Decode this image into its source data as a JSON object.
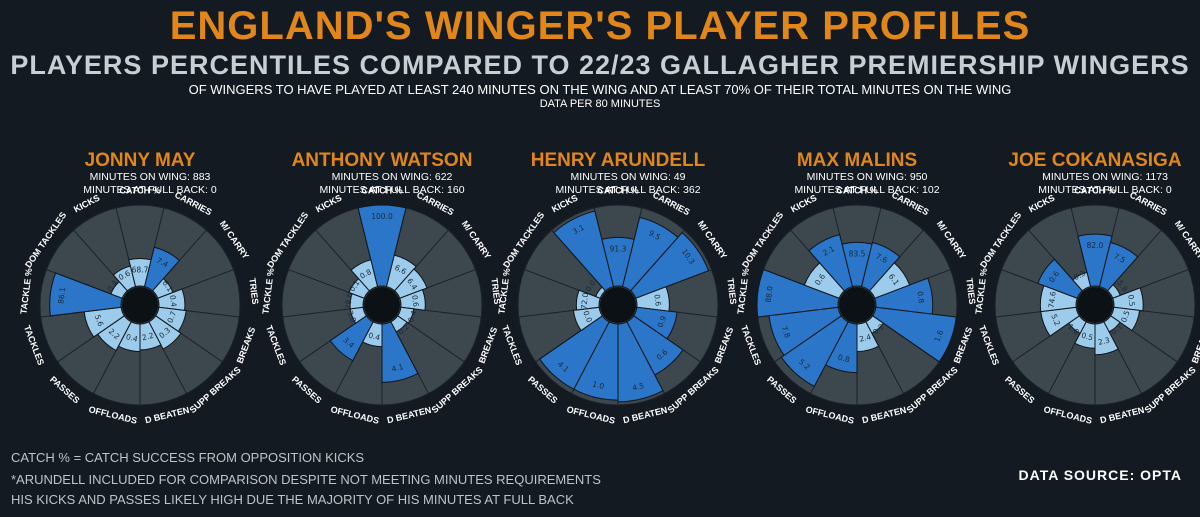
{
  "header": {
    "title": "ENGLAND'S WINGER'S PLAYER PROFILES",
    "subtitle": "PLAYERS PERCENTILES COMPARED TO 22/23 GALLAGHER PREMIERSHIP WINGERS",
    "description": "OF WINGERS TO HAVE PLAYED AT LEAST 240 MINUTES ON THE WING AND AT LEAST 70% OF THEIR TOTAL MINUTES ON THE WING",
    "description2": "DATA PER 80 MINUTES"
  },
  "footer": {
    "note1": "CATCH % = CATCH SUCCESS FROM OPPOSITION KICKS",
    "note2": "*ARUNDELL INCLUDED FOR COMPARISON DESPITE NOT MEETING MINUTES REQUIREMENTS",
    "note3": " HIS KICKS AND PASSES LIKELY HIGH DUE THE MAJORITY OF HIS MINUTES AT FULL BACK",
    "source": "DATA SOURCE: OPTA"
  },
  "colors": {
    "title": "#e0861a",
    "background": "#131a21",
    "sector_background": "#3d474e",
    "bar_dark": "#2b76c8",
    "bar_light": "#9dcbec"
  },
  "chart_data": [
    {
      "type": "radar-bar",
      "player": "JONNY MAY",
      "minutes_on_wing": "MINUTES ON WING: 883",
      "minutes_full_back": "MINUTES AT FULL BACK: 0",
      "categories": [
        "CATCH %",
        "CARRIES",
        "M/ CARRY",
        "TRIES",
        "BREAKS",
        "SUPP BREAKS",
        "D BEATEN",
        "OFFLOADS",
        "PASSES",
        "TACKLES",
        "TACKLE %",
        "DOM TACKLES",
        "KICKS"
      ],
      "percentiles": [
        34,
        50,
        20,
        32,
        34,
        38,
        32,
        34,
        40,
        46,
        88,
        15,
        26
      ],
      "values": [
        "68.7",
        "7.4",
        "6.1",
        "0.4",
        "0.7",
        "0.3",
        "2.2",
        "0.4",
        "2.2",
        "5.6",
        "86.1",
        "0.4",
        "0.6"
      ]
    },
    {
      "type": "radar-bar",
      "player": "ANTHONY WATSON",
      "minutes_on_wing": "MINUTES ON WING: 622",
      "minutes_full_back": "MINUTES AT FULL BACK: 160",
      "categories": [
        "CATCH %",
        "CARRIES",
        "M/ CARRY",
        "TRIES",
        "BREAKS",
        "SUPP BREAKS",
        "D BEATEN",
        "OFFLOADS",
        "PASSES",
        "TACKLES",
        "TACKLE %",
        "DOM TACKLES",
        "KICKS"
      ],
      "percentiles": [
        100,
        40,
        36,
        30,
        16,
        14,
        72,
        28,
        54,
        16,
        16,
        20,
        34
      ],
      "values": [
        "100.0",
        "6.6",
        "6.4",
        "0.6",
        "0.4",
        "0.2",
        "4.1",
        "0.4",
        "3.4",
        "3.8",
        "78.6",
        "0.1",
        "0.8"
      ]
    },
    {
      "type": "radar-bar",
      "player": "HENRY ARUNDELL",
      "minutes_on_wing": "MINUTES ON WING: 49",
      "minutes_full_back": "MINUTES AT FULL BACK: 362",
      "categories": [
        "CATCH %",
        "CARRIES",
        "M/ CARRY",
        "TRIES",
        "BREAKS",
        "SUPP BREAKS",
        "D BEATEN",
        "OFFLOADS",
        "PASSES",
        "TACKLES",
        "TACKLE %",
        "DOM TACKLES",
        "KICKS"
      ],
      "percentiles": [
        60,
        88,
        96,
        40,
        50,
        74,
        96,
        94,
        94,
        32,
        28,
        6,
        96
      ],
      "values": [
        "91.3",
        "9.5",
        "10.3",
        "0.6",
        "0.9",
        "0.6",
        "4.5",
        "1.0",
        "4.1",
        "0.0",
        "72.0",
        "0.0",
        "3.1"
      ]
    },
    {
      "type": "radar-bar",
      "player": "MAX MALINS",
      "minutes_on_wing": "MINUTES ON WING: 950",
      "minutes_full_back": "MINUTES AT FULL BACK: 102",
      "categories": [
        "CATCH %",
        "CARRIES",
        "M/ CARRY",
        "TRIES",
        "BREAKS",
        "SUPP BREAKS",
        "D BEATEN",
        "OFFLOADS",
        "PASSES",
        "TACKLES",
        "TACKLE %",
        "DOM TACKLES",
        "KICKS"
      ],
      "percentiles": [
        54,
        56,
        46,
        70,
        100,
        16,
        34,
        60,
        90,
        86,
        100,
        46,
        66
      ],
      "values": [
        "83.5",
        "7.6",
        "6.1",
        "0.8",
        "1.6",
        "0.2",
        "2.4",
        "0.8",
        "5.2",
        "7.8",
        "88.0",
        "0.6",
        "2.1"
      ]
    },
    {
      "type": "radar-bar",
      "player": "JOE COKANASIGA",
      "minutes_on_wing": "MINUTES ON WING: 1173",
      "minutes_full_back": "MINUTES AT FULL BACK: 0",
      "categories": [
        "CATCH %",
        "CARRIES",
        "M/ CARRY",
        "TRIES",
        "BREAKS",
        "SUPP BREAKS",
        "D BEATEN",
        "OFFLOADS",
        "PASSES",
        "TACKLES",
        "TACKLE %",
        "DOM TACKLES",
        "KICKS"
      ],
      "percentiles": [
        64,
        56,
        10,
        36,
        32,
        14,
        38,
        30,
        16,
        44,
        44,
        52,
        18
      ],
      "values": [
        "82.0",
        "7.5",
        "5.8",
        "0.5",
        "0.5",
        "0.1",
        "2.3",
        "0.5",
        "1.8",
        "5.2",
        "74.6",
        "0.6",
        "0.3"
      ]
    }
  ]
}
